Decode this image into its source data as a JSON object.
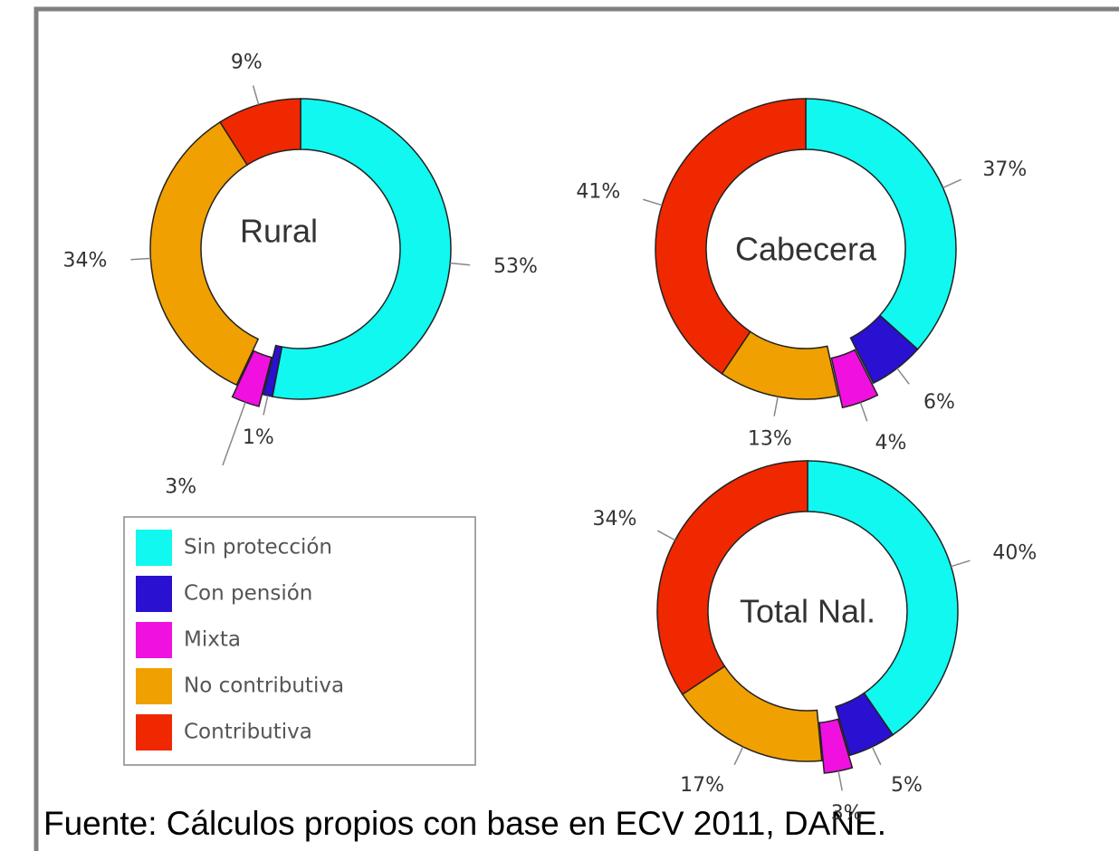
{
  "legend": {
    "categories": [
      "Sin protección",
      "Con pensión",
      "Mixta",
      "No contributiva",
      "Contributiva"
    ],
    "colors": [
      "#10f8f0",
      "#2a10d0",
      "#f010e0",
      "#f0a000",
      "#f02800"
    ],
    "explode": 2
  },
  "chart_data": [
    {
      "type": "pie",
      "title": "Rural",
      "values": [
        53,
        1,
        3,
        34,
        9
      ],
      "value_labels": [
        "53%",
        "1%",
        "3%",
        "34%",
        "9%"
      ]
    },
    {
      "type": "pie",
      "title": "Cabecera",
      "values": [
        37,
        6,
        4,
        13,
        41
      ],
      "value_labels": [
        "37%",
        "6%",
        "4%",
        "13%",
        "41%"
      ]
    },
    {
      "type": "pie",
      "title": "Total Nal.",
      "values": [
        40,
        5,
        3,
        17,
        34
      ],
      "value_labels": [
        "40%",
        "5%",
        "3%",
        "17%",
        "34%"
      ]
    }
  ],
  "source": "Fuente: Cálculos propios con base en ECV 2011, DANE."
}
